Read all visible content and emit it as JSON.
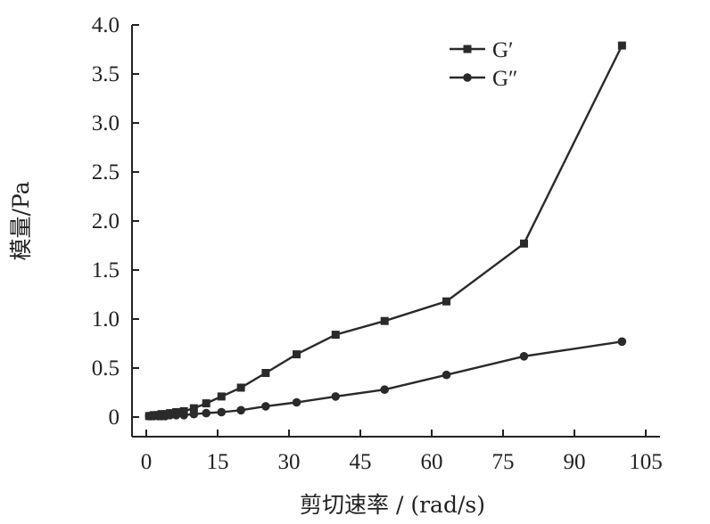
{
  "chart_data": {
    "type": "line",
    "xlabel": "剪切速率 / (rad/s)",
    "ylabel": "模量/Pa",
    "xlim": [
      -3,
      108
    ],
    "ylim": [
      -0.2,
      4.0
    ],
    "xticks": [
      0,
      15,
      30,
      45,
      60,
      75,
      90,
      105
    ],
    "yticks": [
      0,
      0.5,
      1.0,
      1.5,
      2.0,
      2.5,
      3.0,
      3.5,
      4.0
    ],
    "xtick_labels": [
      "0",
      "15",
      "30",
      "45",
      "60",
      "75",
      "90",
      "105"
    ],
    "ytick_labels": [
      "0",
      "0.5",
      "1.0",
      "1.5",
      "2.0",
      "2.5",
      "3.0",
      "3.5",
      "4.0"
    ],
    "grid": false,
    "legend_position": "top-right",
    "series": [
      {
        "name": "G′",
        "marker": "square",
        "color": "#2a2a2a",
        "x": [
          0.6,
          1.0,
          1.6,
          2.5,
          3.2,
          4.0,
          5.0,
          6.3,
          7.9,
          10.0,
          12.6,
          15.8,
          19.9,
          25.1,
          31.6,
          39.8,
          50.1,
          63.1,
          79.4,
          100.0
        ],
        "y": [
          0.01,
          0.01,
          0.02,
          0.02,
          0.03,
          0.03,
          0.04,
          0.05,
          0.06,
          0.09,
          0.14,
          0.21,
          0.3,
          0.45,
          0.64,
          0.84,
          0.98,
          1.18,
          1.77,
          3.79
        ]
      },
      {
        "name": "G″",
        "marker": "circle",
        "color": "#2a2a2a",
        "x": [
          0.6,
          1.0,
          1.6,
          2.5,
          3.2,
          4.0,
          5.0,
          6.3,
          7.9,
          10.0,
          12.6,
          15.8,
          19.9,
          25.1,
          31.6,
          39.8,
          50.1,
          63.1,
          79.4,
          100.0
        ],
        "y": [
          0.01,
          0.01,
          0.01,
          0.01,
          0.01,
          0.01,
          0.02,
          0.02,
          0.02,
          0.03,
          0.04,
          0.05,
          0.07,
          0.11,
          0.15,
          0.21,
          0.28,
          0.43,
          0.62,
          0.77
        ]
      }
    ]
  }
}
